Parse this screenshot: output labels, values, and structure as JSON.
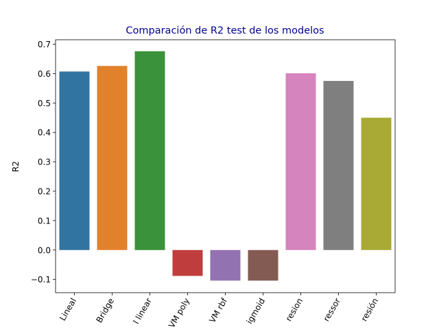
{
  "chart_data": {
    "type": "bar",
    "title": "Comparación de R2 test de los modelos",
    "title_color": "#00008b",
    "xlabel": "",
    "ylabel": "R2",
    "ylim": [
      -0.145,
      0.715
    ],
    "yticks": [
      -0.1,
      0.0,
      0.1,
      0.2,
      0.3,
      0.4,
      0.5,
      0.6,
      0.7
    ],
    "ytick_labels": [
      "−0.1",
      "0.0",
      "0.1",
      "0.2",
      "0.3",
      "0.4",
      "0.5",
      "0.6",
      "0.7"
    ],
    "grid": false,
    "xtick_rotation": -60,
    "categories": [
      "Lineal",
      "Bridge",
      "l linear",
      "VM poly",
      "VM rbf",
      "igmoid",
      "resion",
      "ressor",
      "resión"
    ],
    "values": [
      0.607,
      0.626,
      0.676,
      -0.088,
      -0.104,
      -0.104,
      0.601,
      0.575,
      0.45
    ],
    "colors": [
      "#3274a1",
      "#e1812c",
      "#3a923a",
      "#c03d3e",
      "#9372b2",
      "#845b53",
      "#d684bd",
      "#7f7f7f",
      "#a9aa35"
    ]
  }
}
